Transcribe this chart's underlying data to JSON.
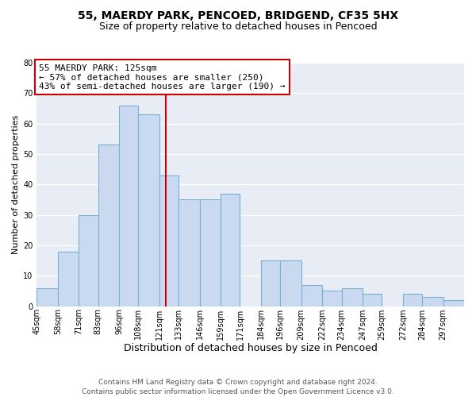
{
  "title": "55, MAERDY PARK, PENCOED, BRIDGEND, CF35 5HX",
  "subtitle": "Size of property relative to detached houses in Pencoed",
  "xlabel": "Distribution of detached houses by size in Pencoed",
  "ylabel": "Number of detached properties",
  "bar_color": "#c9d9f0",
  "bar_edge_color": "#7bafd4",
  "background_color": "#e8edf5",
  "grid_color": "#ffffff",
  "fig_background": "#ffffff",
  "vline_x": 125,
  "vline_color": "#cc0000",
  "categories": [
    "45sqm",
    "58sqm",
    "71sqm",
    "83sqm",
    "96sqm",
    "108sqm",
    "121sqm",
    "133sqm",
    "146sqm",
    "159sqm",
    "171sqm",
    "184sqm",
    "196sqm",
    "209sqm",
    "222sqm",
    "234sqm",
    "247sqm",
    "259sqm",
    "272sqm",
    "284sqm",
    "297sqm"
  ],
  "bin_edges": [
    45,
    58,
    71,
    83,
    96,
    108,
    121,
    133,
    146,
    159,
    171,
    184,
    196,
    209,
    222,
    234,
    247,
    259,
    272,
    284,
    297,
    310
  ],
  "values": [
    6,
    18,
    30,
    53,
    66,
    63,
    43,
    35,
    35,
    37,
    0,
    15,
    15,
    7,
    5,
    6,
    4,
    0,
    4,
    3,
    2
  ],
  "ylim": [
    0,
    80
  ],
  "yticks": [
    0,
    10,
    20,
    30,
    40,
    50,
    60,
    70,
    80
  ],
  "annotation_title": "55 MAERDY PARK: 125sqm",
  "annotation_line1": "← 57% of detached houses are smaller (250)",
  "annotation_line2": "43% of semi-detached houses are larger (190) →",
  "annotation_box_color": "#ffffff",
  "annotation_box_edge_color": "#cc0000",
  "footer_line1": "Contains HM Land Registry data © Crown copyright and database right 2024.",
  "footer_line2": "Contains public sector information licensed under the Open Government Licence v3.0.",
  "title_fontsize": 10,
  "subtitle_fontsize": 9,
  "xlabel_fontsize": 9,
  "ylabel_fontsize": 8,
  "tick_fontsize": 7,
  "annotation_fontsize": 8,
  "footer_fontsize": 6.5
}
